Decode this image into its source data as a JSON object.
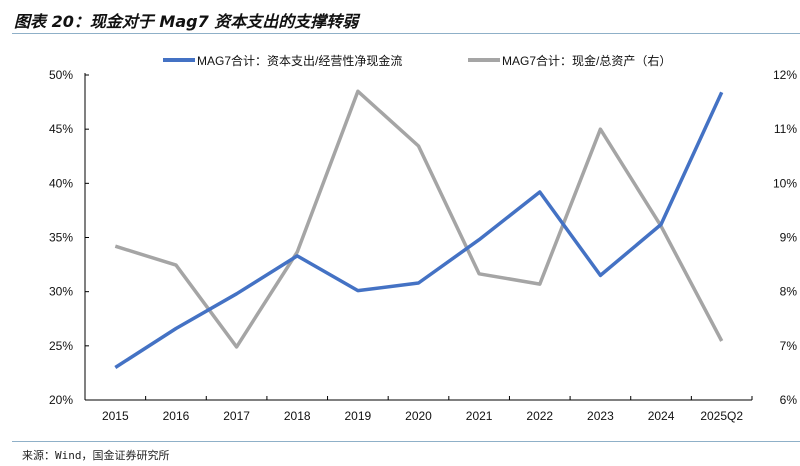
{
  "title": "图表 20：现金对于 Mag7 资本支出的支撑转弱",
  "source": "来源：Wind，国金证券研究所",
  "chart_data": {
    "type": "line",
    "categories": [
      "2015",
      "2016",
      "2017",
      "2018",
      "2019",
      "2020",
      "2021",
      "2022",
      "2023",
      "2024",
      "2025Q2"
    ],
    "series": [
      {
        "name": "MAG7合计：资本支出/经营性净现金流",
        "axis": "left",
        "color": "#4472c4",
        "values": [
          23.0,
          26.6,
          29.8,
          33.3,
          30.1,
          30.8,
          34.8,
          39.2,
          31.5,
          36.2,
          48.4
        ]
      },
      {
        "name": "MAG7合计：现金/总资产（右）",
        "axis": "right",
        "color": "#a5a5a5",
        "values": [
          8.84,
          8.49,
          6.98,
          8.73,
          11.7,
          10.69,
          8.33,
          8.14,
          11.0,
          9.21,
          7.09
        ]
      }
    ],
    "y_left": {
      "range": [
        20,
        50
      ],
      "ticks": [
        "20%",
        "25%",
        "30%",
        "35%",
        "40%",
        "45%",
        "50%"
      ]
    },
    "y_right": {
      "range": [
        6,
        12
      ],
      "ticks": [
        "6%",
        "7%",
        "8%",
        "9%",
        "10%",
        "11%",
        "12%"
      ]
    },
    "grid": false,
    "legend": "top"
  }
}
